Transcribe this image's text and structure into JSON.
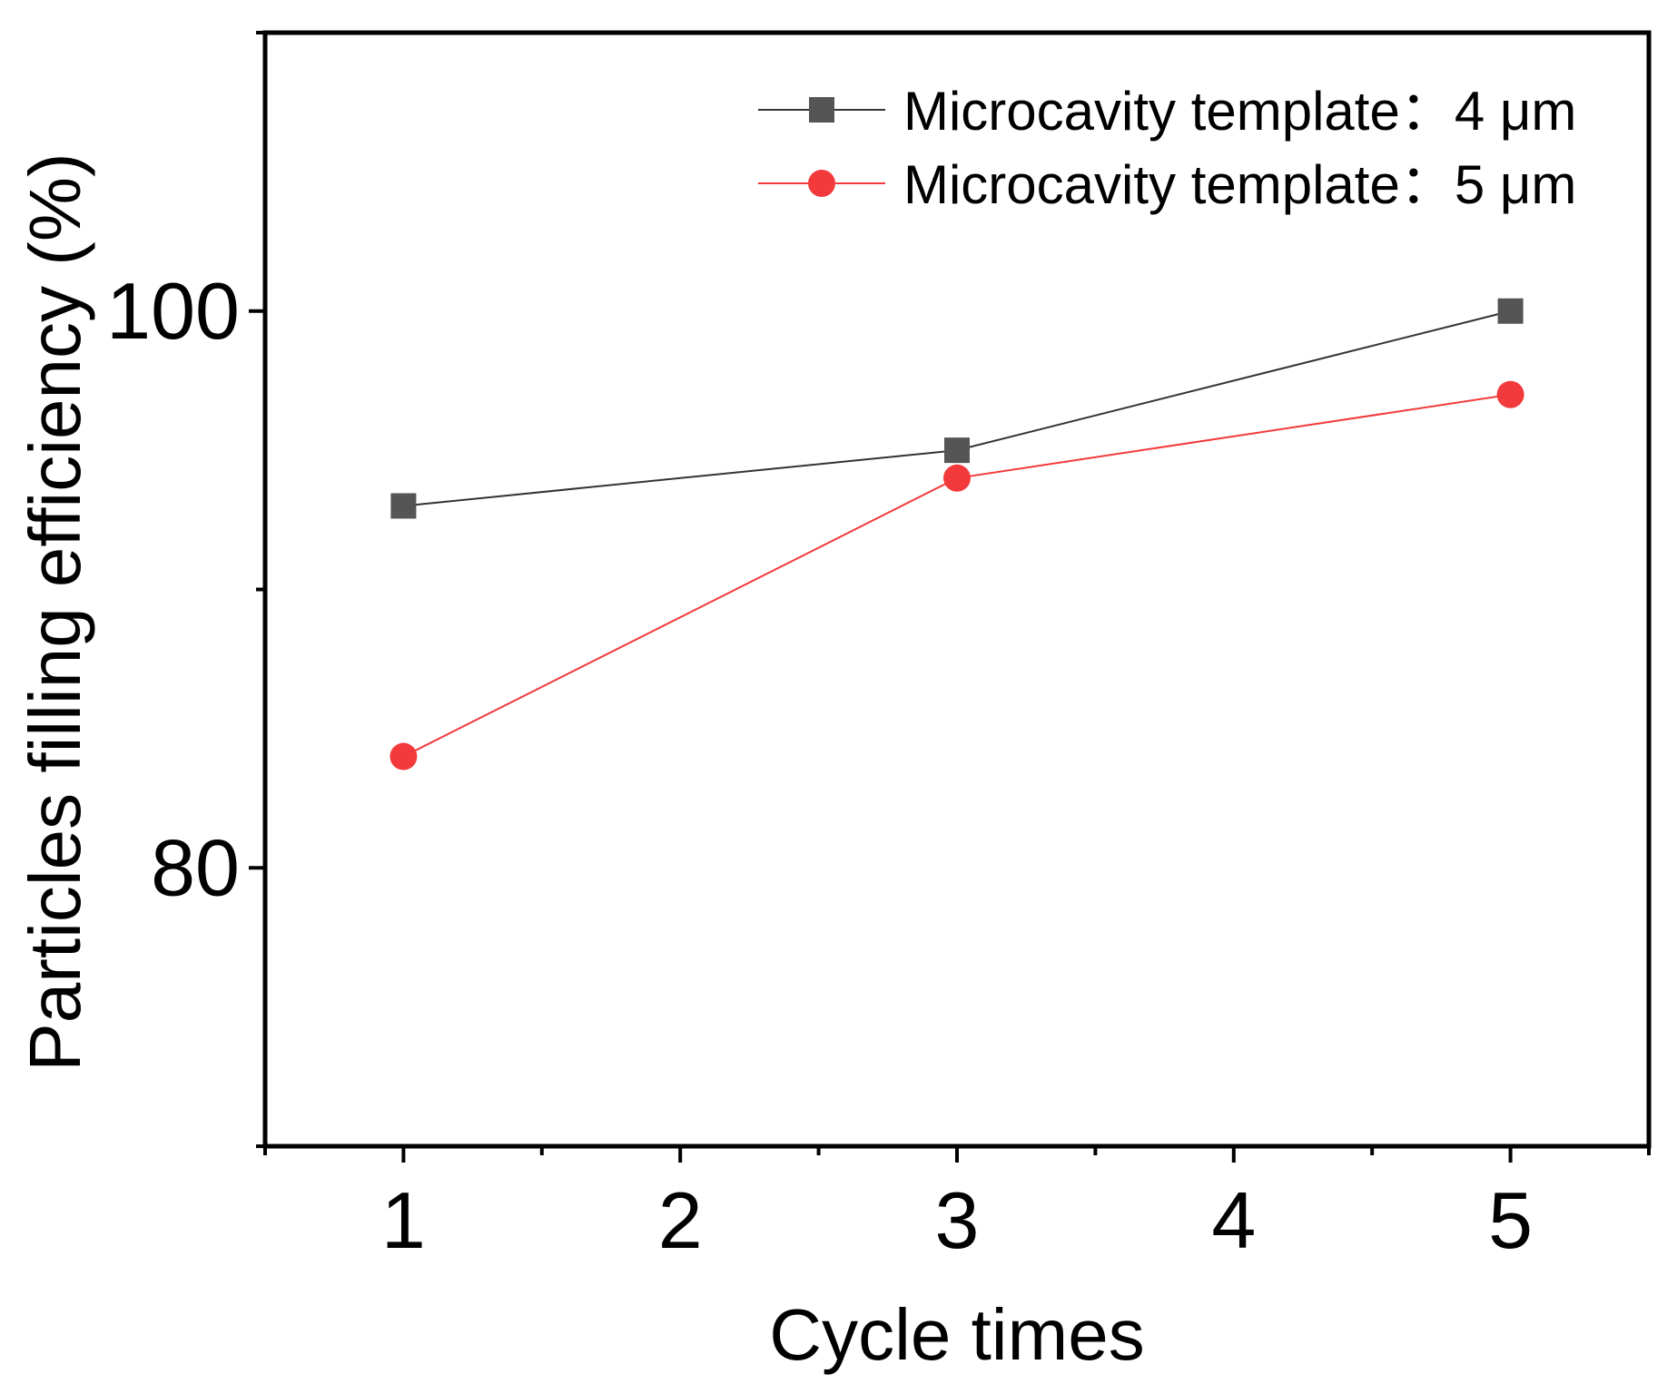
{
  "chart_data": {
    "type": "line",
    "title": "",
    "xlabel": "Cycle times",
    "ylabel": "Particles filling efficiency (%)",
    "xlim": [
      0.5,
      5.5
    ],
    "ylim": [
      70,
      110
    ],
    "x_ticks": [
      1,
      2,
      3,
      4,
      5
    ],
    "y_ticks": [
      80,
      100
    ],
    "grid": false,
    "legend_position": "top-right",
    "series": [
      {
        "name": "Microcavity template：4 μm",
        "color": "#555555",
        "line_color": "#333333",
        "marker": "square",
        "x": [
          1,
          3,
          5
        ],
        "y": [
          93,
          95,
          100
        ]
      },
      {
        "name": "Microcavity template：5 μm",
        "color": "#f23a3c",
        "line_color": "#f23a3c",
        "marker": "circle",
        "x": [
          1,
          3,
          5
        ],
        "y": [
          84,
          94,
          97
        ]
      }
    ]
  }
}
